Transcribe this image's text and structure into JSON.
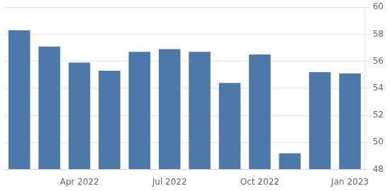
{
  "chart_data": {
    "type": "bar",
    "categories": [
      null,
      null,
      "Apr 2022",
      null,
      null,
      "Jul 2022",
      null,
      null,
      "Oct 2022",
      null,
      null,
      "Jan 2023"
    ],
    "values": [
      58.3,
      57.1,
      55.9,
      55.3,
      56.7,
      56.9,
      56.7,
      54.4,
      56.5,
      49.2,
      55.2,
      55.1
    ],
    "color": "#4c79a7",
    "ylim": [
      48,
      60
    ],
    "yticks": [
      48,
      50,
      52,
      54,
      56,
      58,
      60
    ],
    "grid": true
  }
}
